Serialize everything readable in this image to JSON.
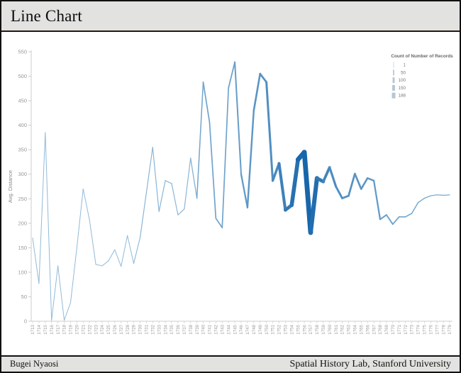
{
  "header": {
    "title": "Line Chart"
  },
  "footer": {
    "left": "Bugei Nyaosi",
    "right": "Spatial History Lab, Stanford University"
  },
  "colors": {
    "header_bg": "#e2e2e0",
    "border": "#111111",
    "axis": "#cccccc",
    "tick_label": "#999999",
    "axis_title": "#888888",
    "legend_title": "#666666",
    "legend_label": "#777777",
    "legend_sample": "#b5c6d4",
    "line_light": "#9ec4de",
    "line_dark": "#1464aa"
  },
  "chart_data": {
    "type": "line",
    "title": "",
    "xlabel": "",
    "ylabel": "Avg. Distance",
    "ylim": [
      0,
      550
    ],
    "ytick_step": 50,
    "grid": false,
    "x": [
      1713,
      1714,
      1715,
      1716,
      1717,
      1718,
      1719,
      1720,
      1721,
      1722,
      1723,
      1724,
      1725,
      1726,
      1727,
      1728,
      1729,
      1730,
      1731,
      1732,
      1733,
      1734,
      1735,
      1736,
      1737,
      1738,
      1739,
      1740,
      1741,
      1742,
      1743,
      1744,
      1745,
      1746,
      1747,
      1748,
      1749,
      1750,
      1751,
      1752,
      1753,
      1754,
      1755,
      1756,
      1757,
      1758,
      1759,
      1760,
      1761,
      1762,
      1763,
      1764,
      1765,
      1766,
      1767,
      1768,
      1769,
      1770,
      1771,
      1772,
      1773,
      1774,
      1775,
      1776,
      1777,
      1778,
      1779
    ],
    "series": [
      {
        "name": "Avg. Distance",
        "values": [
          170,
          77,
          385,
          2,
          113,
          2,
          38,
          150,
          270,
          207,
          116,
          113,
          123,
          146,
          112,
          175,
          118,
          170,
          262,
          355,
          224,
          287,
          281,
          217,
          229,
          333,
          251,
          488,
          406,
          210,
          191,
          476,
          529,
          300,
          232,
          430,
          505,
          488,
          287,
          322,
          227,
          237,
          330,
          345,
          181,
          292,
          285,
          314,
          275,
          251,
          256,
          301,
          270,
          292,
          287,
          208,
          217,
          198,
          213,
          213,
          220,
          242,
          251,
          256,
          258,
          257,
          258
        ]
      },
      {
        "name": "Count of Number of Records",
        "values": [
          3,
          3,
          3,
          3,
          3,
          3,
          3,
          3,
          3,
          3,
          3,
          3,
          3,
          3,
          3,
          3,
          3,
          8,
          8,
          8,
          8,
          8,
          8,
          8,
          8,
          8,
          15,
          25,
          25,
          25,
          25,
          25,
          30,
          40,
          45,
          50,
          55,
          60,
          70,
          85,
          110,
          130,
          160,
          188,
          175,
          140,
          100,
          75,
          65,
          60,
          58,
          55,
          52,
          50,
          45,
          38,
          33,
          28,
          25,
          22,
          20,
          18,
          16,
          15,
          14,
          13,
          12
        ]
      }
    ],
    "legend": {
      "title": "Count of Number of Records",
      "entries": [
        "1",
        "50",
        "100",
        "150",
        "188"
      ],
      "position": "top-right",
      "encoding": "line-thickness"
    }
  }
}
